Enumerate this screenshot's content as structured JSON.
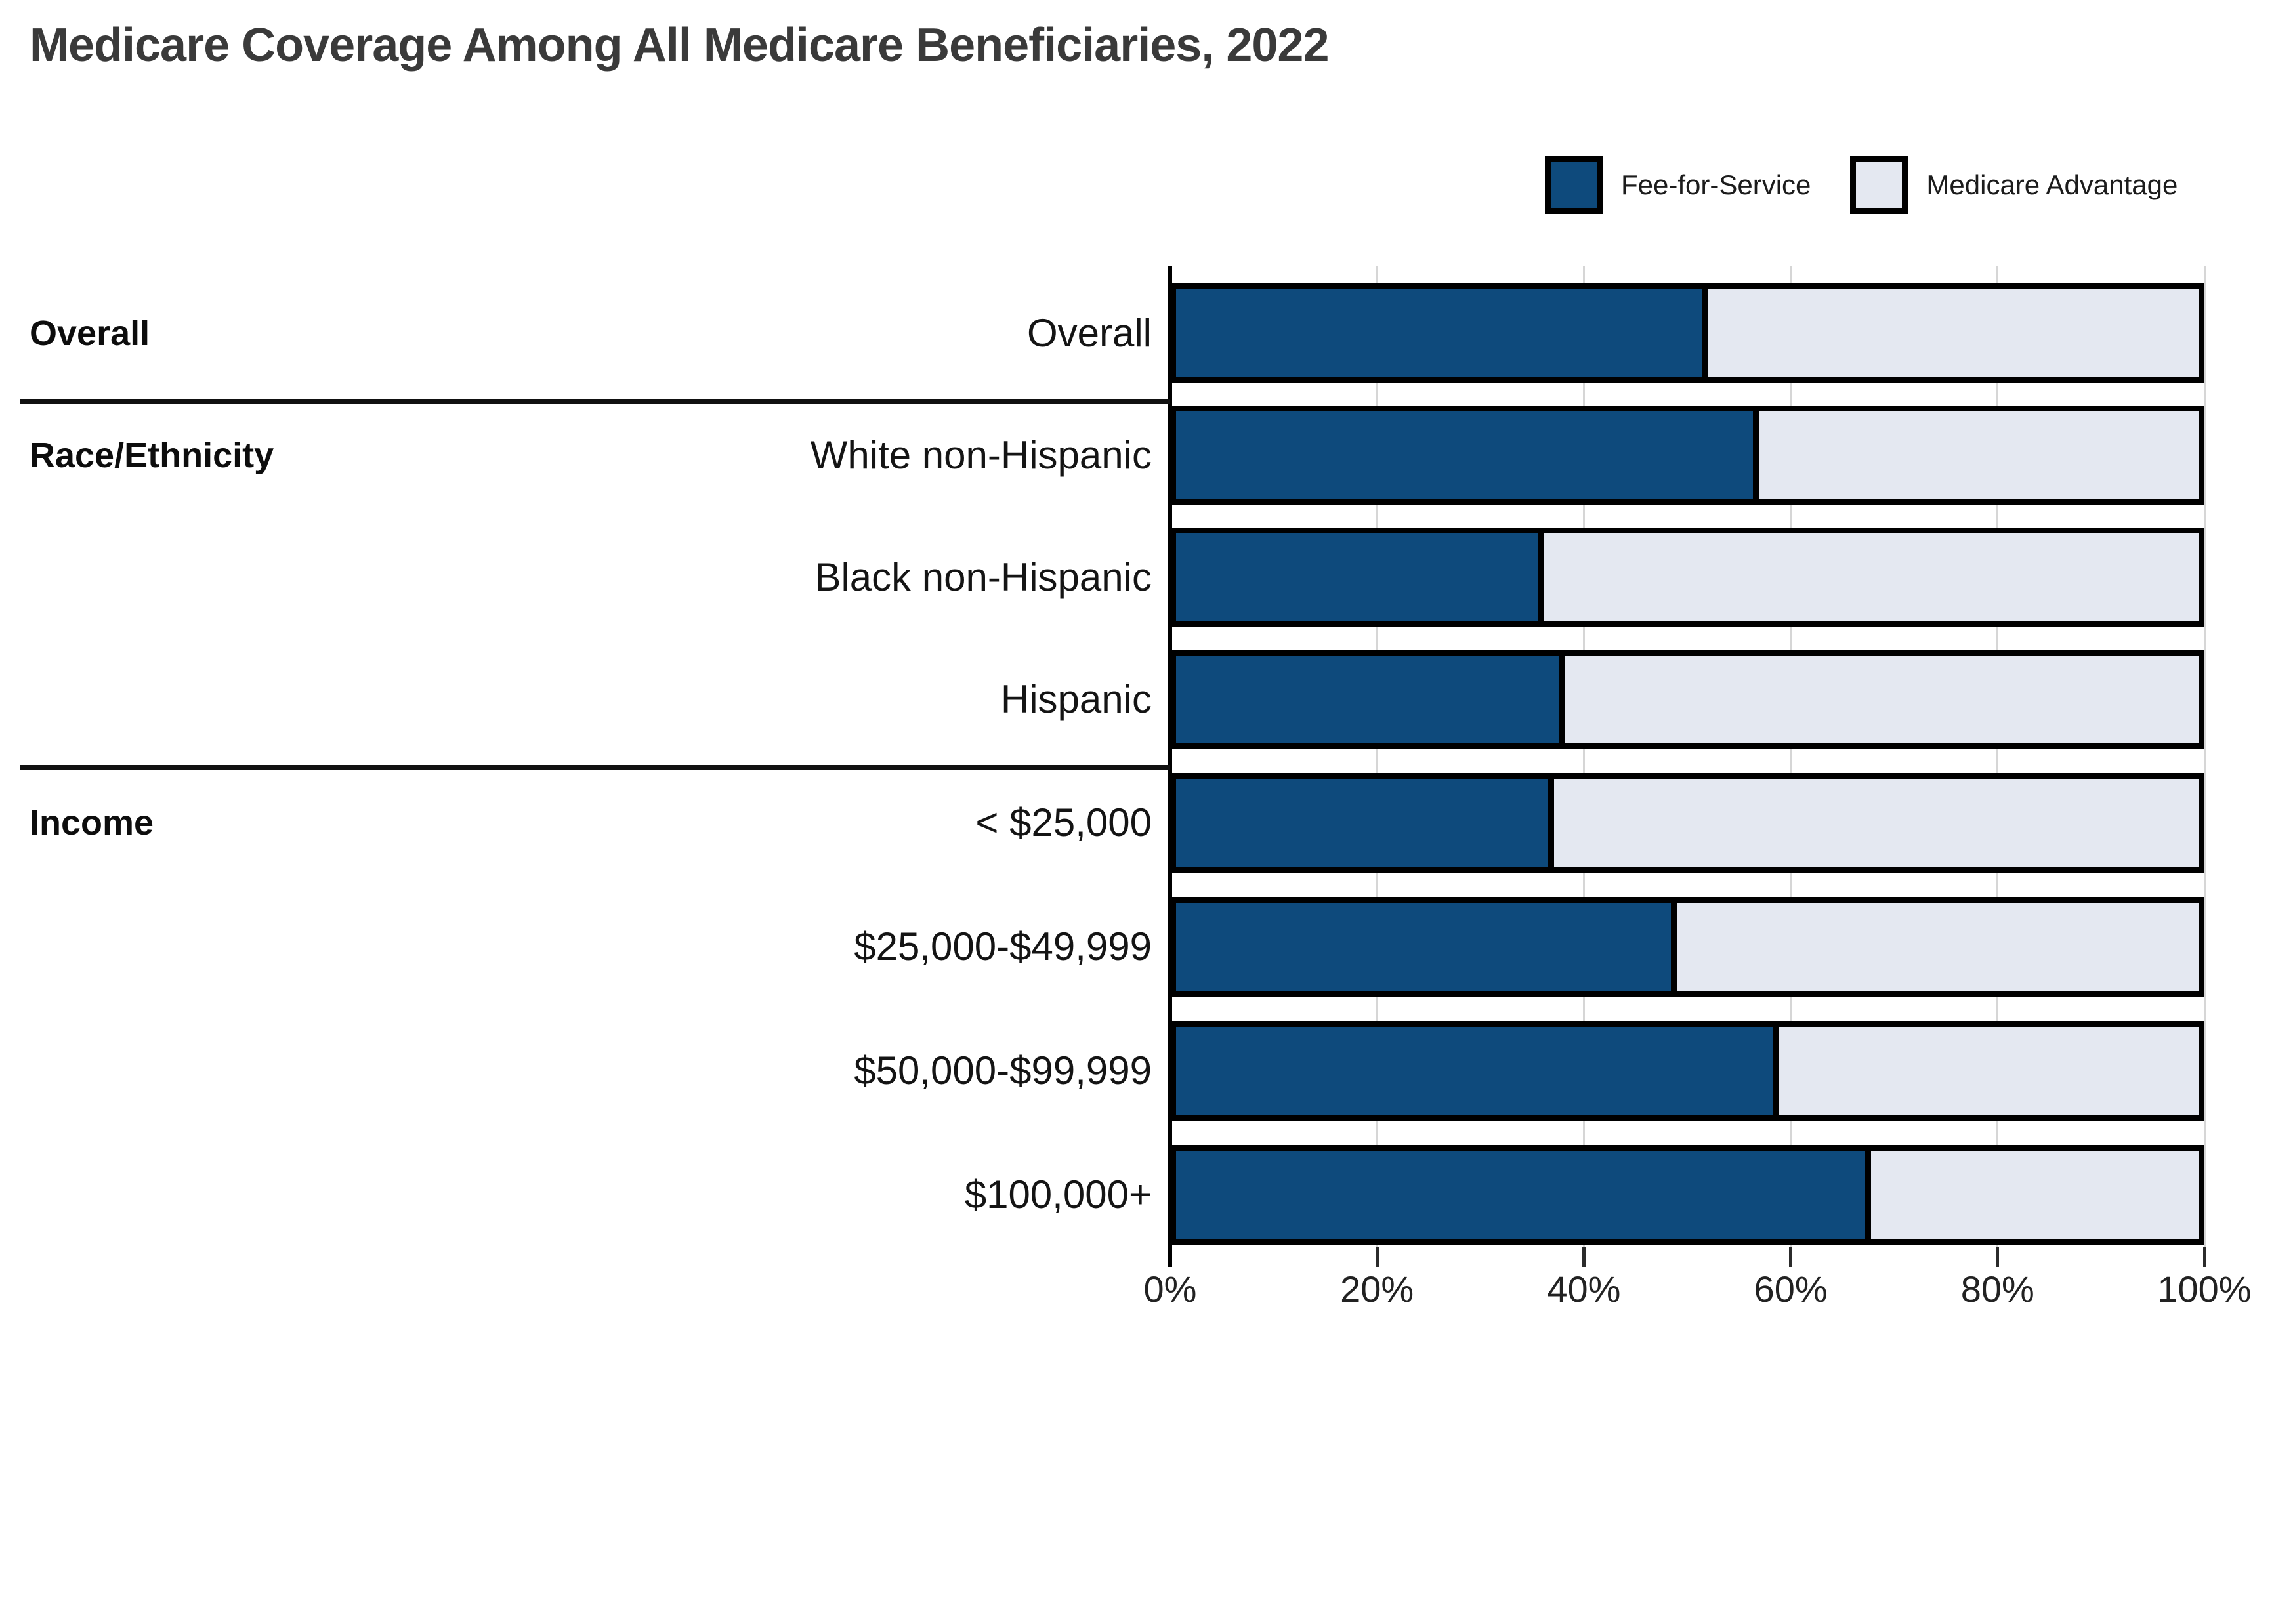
{
  "title": "Medicare Coverage Among All Medicare Beneficiaries, 2022",
  "legend": {
    "items": [
      {
        "label": "Fee-for-Service",
        "color": "#0e4a7c"
      },
      {
        "label": "Medicare Advantage",
        "color": "#e4e8f1"
      }
    ]
  },
  "chart_data": {
    "type": "bar",
    "orientation": "horizontal",
    "stacked": true,
    "title": "Medicare Coverage Among All Medicare Beneficiaries, 2022",
    "categories": [
      "Overall",
      "White non-Hispanic",
      "Black non-Hispanic",
      "Hispanic",
      "< $25,000",
      "$25,000-$49,999",
      "$50,000-$99,999",
      "$100,000+"
    ],
    "groups": [
      {
        "label": "Overall",
        "first_row": 0,
        "rows": [
          0
        ]
      },
      {
        "label": "Race/Ethnicity",
        "first_row": 1,
        "rows": [
          1,
          2,
          3
        ]
      },
      {
        "label": "Income",
        "first_row": 4,
        "rows": [
          4,
          5,
          6,
          7
        ]
      }
    ],
    "series": [
      {
        "name": "Fee-for-Service",
        "color": "#0e4a7c",
        "values": [
          52,
          57,
          36,
          38,
          37,
          49,
          59,
          68
        ]
      },
      {
        "name": "Medicare Advantage",
        "color": "#e4e8f1",
        "values": [
          48,
          43,
          64,
          62,
          63,
          51,
          41,
          32
        ]
      }
    ],
    "x_axis": {
      "min": 0,
      "max": 100,
      "tick_step": 20,
      "tick_labels": [
        "0%",
        "20%",
        "40%",
        "60%",
        "80%",
        "100%"
      ],
      "grid": true
    },
    "legend_position": "top-right",
    "colors": {
      "bar_border": "#000000",
      "gridline": "#d6d6d6",
      "axis": "#000000"
    }
  }
}
